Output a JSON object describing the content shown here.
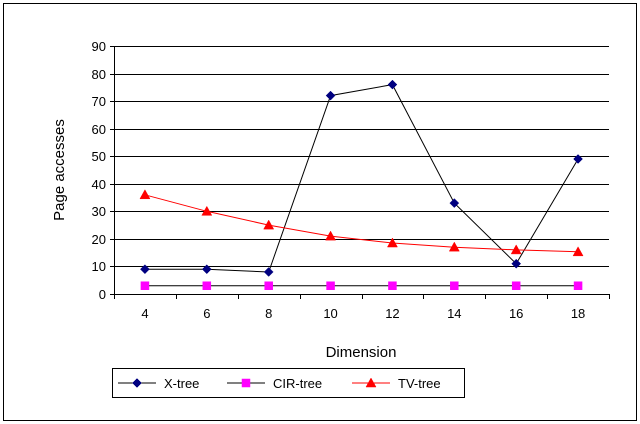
{
  "chart_data": {
    "type": "line",
    "title": "",
    "xlabel": "Dimension",
    "ylabel": "Page accesses",
    "categories": [
      "4",
      "6",
      "8",
      "10",
      "12",
      "14",
      "16",
      "18"
    ],
    "ylim": [
      0,
      90
    ],
    "yticks": [
      "0",
      "10",
      "20",
      "30",
      "40",
      "50",
      "60",
      "70",
      "80",
      "90"
    ],
    "grid": "horizontal",
    "legend_position": "bottom-left",
    "series": [
      {
        "name": "X-tree",
        "color": "#000080",
        "line_color": "#000000",
        "marker": "diamond",
        "values": [
          9,
          9,
          8,
          72,
          76,
          33,
          11,
          49
        ]
      },
      {
        "name": "CIR-tree",
        "color": "#ff00ff",
        "line_color": "#000000",
        "marker": "square",
        "values": [
          3,
          3,
          3,
          3,
          3,
          3,
          3,
          3
        ]
      },
      {
        "name": "TV-tree",
        "color": "#ff0000",
        "line_color": "#ff0000",
        "marker": "triangle",
        "values": [
          36,
          30,
          25,
          21,
          18.5,
          17,
          16,
          15.3
        ]
      }
    ]
  }
}
